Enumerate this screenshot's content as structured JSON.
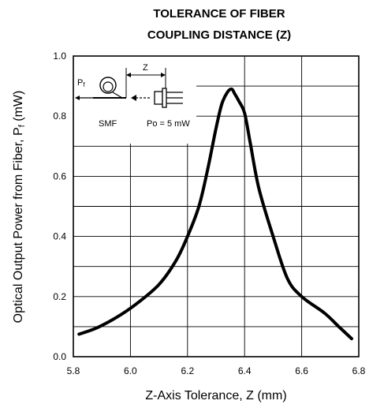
{
  "chart_data": {
    "type": "line",
    "title_line1": "TOLERANCE OF FIBER",
    "title_line2": "COUPLING DISTANCE (Z)",
    "xlabel": "Z-Axis Tolerance, Z (mm)",
    "ylabel_prefix": "Optical Output Power  from Fiber, P",
    "ylabel_sub": "f",
    "ylabel_suffix": " (mW)",
    "xlim": [
      5.8,
      6.8
    ],
    "ylim": [
      0.0,
      1.0
    ],
    "xticks": [
      "5.8",
      "6.0",
      "6.2",
      "6.4",
      "6.6",
      "6.8"
    ],
    "yticks": [
      "0.0",
      "0.2",
      "0.4",
      "0.6",
      "0.8",
      "1.0"
    ],
    "grid": true,
    "series": [
      {
        "x": [
          5.82,
          5.88,
          5.95,
          6.02,
          6.1,
          6.16,
          6.2,
          6.24,
          6.27,
          6.3,
          6.32,
          6.34,
          6.355,
          6.365,
          6.38,
          6.4,
          6.42,
          6.45,
          6.5,
          6.55,
          6.6,
          6.68,
          6.73,
          6.775
        ],
        "y": [
          0.075,
          0.095,
          0.13,
          0.175,
          0.24,
          0.32,
          0.4,
          0.5,
          0.62,
          0.76,
          0.84,
          0.88,
          0.89,
          0.875,
          0.85,
          0.81,
          0.71,
          0.56,
          0.4,
          0.26,
          0.2,
          0.145,
          0.1,
          0.06
        ]
      }
    ],
    "inset": {
      "pf_prefix": "P",
      "pf_sub": "f",
      "z_label": "Z",
      "smf_label": "SMF",
      "po_label": "Po = 5 mW"
    }
  }
}
